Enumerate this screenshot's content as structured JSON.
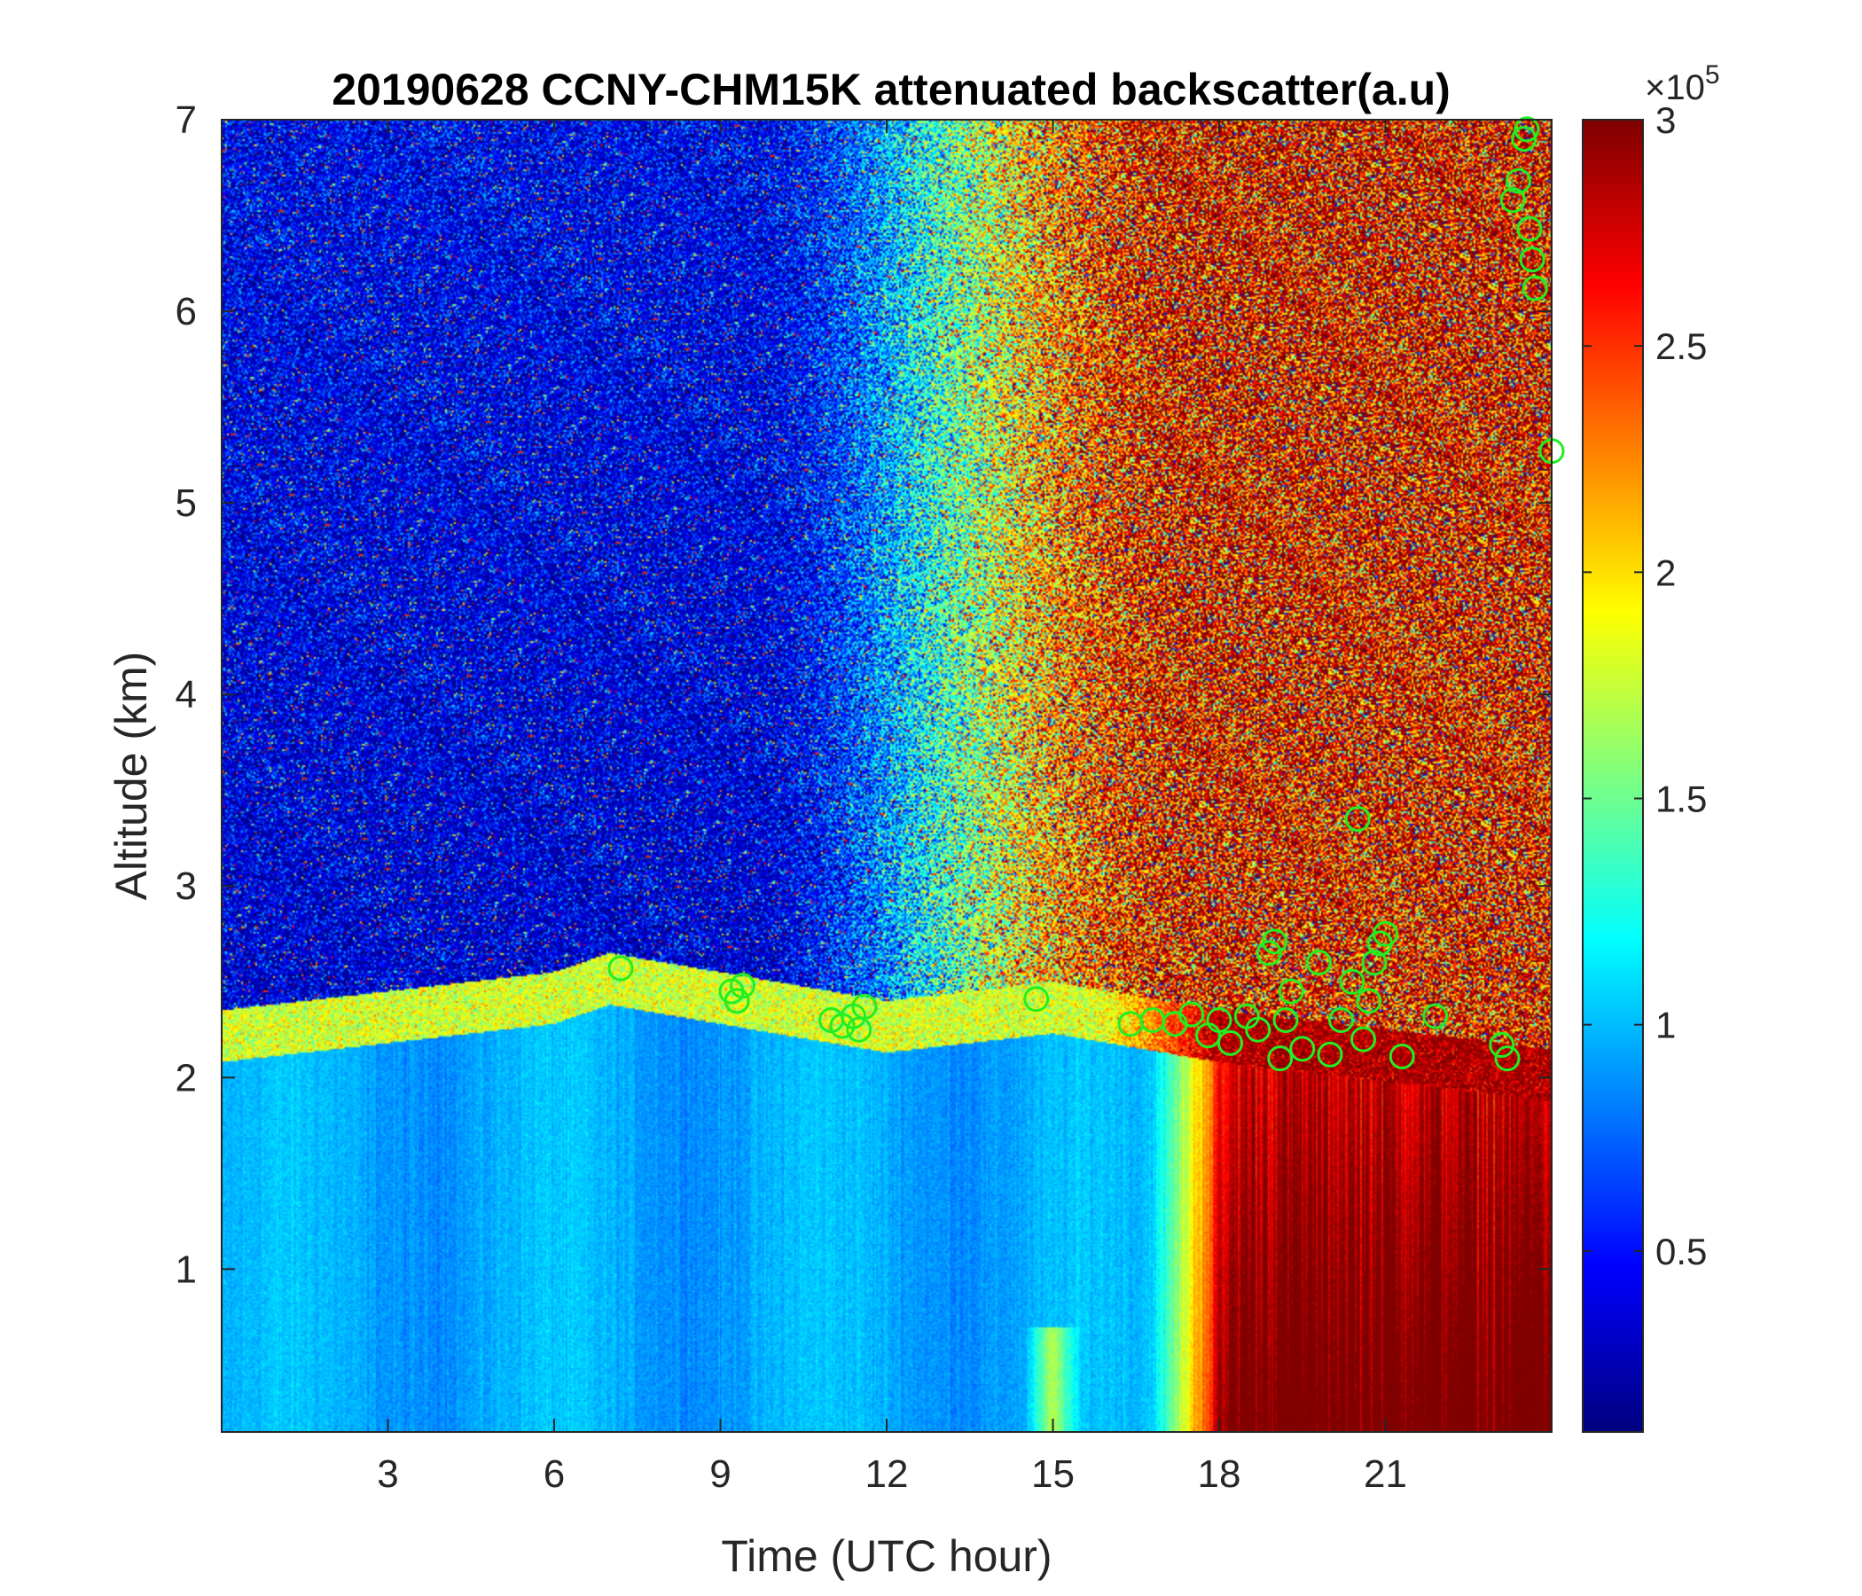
{
  "chart_data": {
    "type": "heatmap",
    "title": "20190628 CCNY-CHM15K attenuated backscatter(a.u)",
    "xlabel": "Time (UTC hour)",
    "ylabel": "Altitude (km)",
    "xlim": [
      0,
      24
    ],
    "ylim": [
      0.15,
      7
    ],
    "xticks": [
      3,
      6,
      9,
      12,
      15,
      18,
      21
    ],
    "xtick_labels": [
      "3",
      "6",
      "9",
      "12",
      "15",
      "18",
      "21"
    ],
    "yticks": [
      1,
      2,
      3,
      4,
      5,
      6,
      7
    ],
    "ytick_labels": [
      "1",
      "2",
      "3",
      "4",
      "5",
      "6",
      "7"
    ],
    "colormap": "jet",
    "colorbar": {
      "clim": [
        0.1,
        3
      ],
      "ticks": [
        0.5,
        1,
        1.5,
        2,
        2.5,
        3
      ],
      "tick_labels": [
        "0.5",
        "1",
        "1.5",
        "2",
        "2.5",
        "3"
      ],
      "multiplier_prefix": "×10",
      "multiplier_exponent": "5"
    },
    "field_description": {
      "boundary_layer_top_km": [
        [
          0,
          2.2
        ],
        [
          3,
          2.3
        ],
        [
          6,
          2.4
        ],
        [
          7,
          2.5
        ],
        [
          9,
          2.4
        ],
        [
          12,
          2.25
        ],
        [
          15,
          2.35
        ],
        [
          18,
          2.2
        ],
        [
          21,
          2.1
        ],
        [
          24,
          2.0
        ]
      ],
      "regions": [
        {
          "t0": 0,
          "t1": 10.5,
          "z0": 2.4,
          "z1": 7,
          "value": 0.4
        },
        {
          "t0": 10.5,
          "t1": 16.5,
          "z0": 2.6,
          "z1": 7,
          "value": 1.8
        },
        {
          "t0": 16.5,
          "t1": 24,
          "z0": 2.6,
          "z1": 7,
          "value": 2.8
        },
        {
          "t0": 0,
          "t1": 17,
          "z0": 0.15,
          "z1": 2.2,
          "value": 1.0
        },
        {
          "t0": 17,
          "t1": 24,
          "z0": 0.15,
          "z1": 2.1,
          "value": 2.7
        }
      ]
    },
    "series": [
      {
        "marker": "open-circle",
        "color": "#22ee22",
        "x": [
          7.2,
          9.2,
          9.3,
          9.4,
          11.0,
          11.2,
          11.4,
          11.5,
          11.6,
          14.7,
          16.4,
          16.8,
          17.2,
          17.5,
          17.8,
          18.0,
          18.2,
          18.5,
          18.7,
          18.9,
          19.0,
          19.1,
          19.2,
          19.3,
          19.5,
          19.8,
          20.0,
          20.2,
          20.4,
          20.5,
          20.6,
          20.7,
          20.8,
          20.9,
          21.0,
          21.3,
          21.9,
          23.1,
          23.2,
          23.3,
          23.4,
          23.5,
          23.55,
          23.6,
          23.65,
          23.7,
          24.0
        ],
        "y": [
          2.57,
          2.45,
          2.4,
          2.48,
          2.3,
          2.27,
          2.32,
          2.25,
          2.37,
          2.41,
          2.28,
          2.3,
          2.28,
          2.33,
          2.22,
          2.3,
          2.18,
          2.32,
          2.25,
          2.65,
          2.71,
          2.1,
          2.3,
          2.45,
          2.15,
          2.6,
          2.12,
          2.3,
          2.5,
          3.35,
          2.2,
          2.4,
          2.6,
          2.7,
          2.75,
          2.11,
          2.32,
          2.17,
          2.1,
          6.58,
          6.68,
          6.9,
          6.95,
          6.43,
          6.27,
          6.12,
          5.27
        ]
      }
    ]
  }
}
